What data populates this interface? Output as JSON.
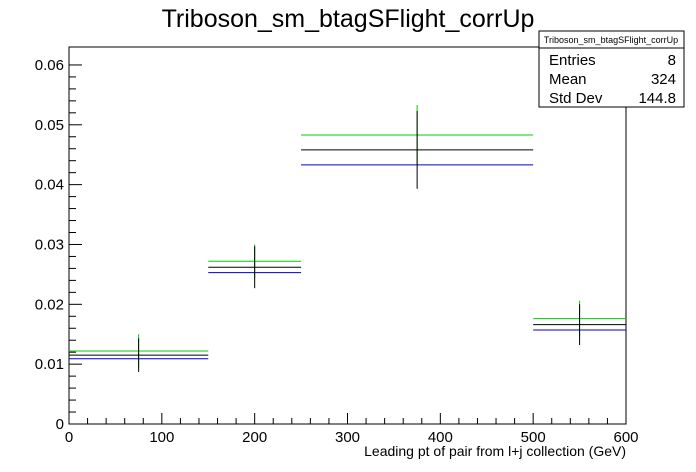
{
  "chart_data": {
    "type": "errorbar-histogram",
    "title": "Triboson_sm_btagSFlight_corrUp",
    "xlabel": "Leading pt of pair from l+j collection (GeV)",
    "ylabel": "",
    "xlim": [
      0,
      600
    ],
    "ylim": [
      0,
      0.063
    ],
    "x_ticks": [
      "0",
      "100",
      "200",
      "300",
      "400",
      "500",
      "600"
    ],
    "y_ticks": [
      "0",
      "0.01",
      "0.02",
      "0.03",
      "0.04",
      "0.05",
      "0.06"
    ],
    "bin_edges": [
      0,
      150,
      250,
      500,
      600
    ],
    "series": [
      {
        "color": "#000000",
        "values": [
          0.0115,
          0.0262,
          0.0458,
          0.0166
        ],
        "errors": [
          0.0028,
          0.0035,
          0.0065,
          0.0034
        ]
      },
      {
        "color": "#00cc00",
        "values": [
          0.0122,
          0.0272,
          0.0483,
          0.0176
        ],
        "errors": [
          0.0028,
          0.0028,
          0.005,
          0.003
        ]
      },
      {
        "color": "#0000cc",
        "values": [
          0.0109,
          0.0253,
          0.0433,
          0.0157
        ],
        "errors": [
          0.0,
          0.0,
          0.0,
          0.0
        ]
      }
    ],
    "stats_box": {
      "title": "Triboson_sm_btagSFlight_corrUp",
      "rows": [
        {
          "label": "Entries",
          "value": "8"
        },
        {
          "label": "Mean",
          "value": "324"
        },
        {
          "label": "Std Dev",
          "value": "144.8"
        }
      ]
    }
  }
}
